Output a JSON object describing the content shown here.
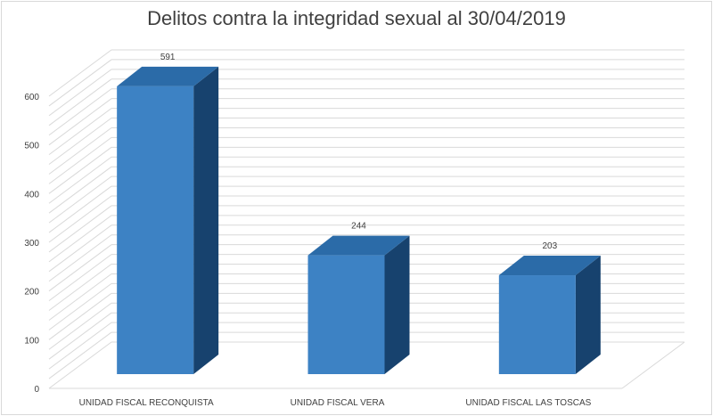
{
  "chart_data": {
    "type": "bar",
    "title": "Delitos contra la integridad sexual al 30/04/2019",
    "categories": [
      "UNIDAD FISCAL RECONQUISTA",
      "UNIDAD FISCAL VERA",
      "UNIDAD FISCAL LAS TOSCAS"
    ],
    "values": [
      591,
      244,
      203
    ],
    "data_labels": [
      "591",
      "244",
      "203"
    ],
    "y_ticks": [
      "0",
      "100",
      "200",
      "300",
      "400",
      "500",
      "600"
    ],
    "ylim": [
      0,
      600
    ],
    "grid": true,
    "style": "3d-column",
    "colors": {
      "bar_front": "#3d82c4",
      "bar_top": "#2b6ba8",
      "bar_side": "#17426e",
      "gridline": "#d9d9d9",
      "text": "#404040"
    }
  }
}
